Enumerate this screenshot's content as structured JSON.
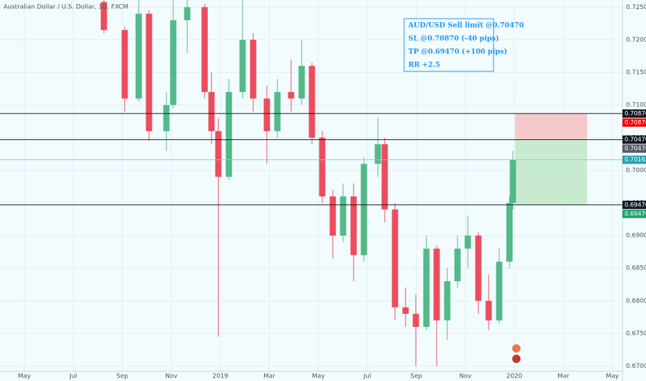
{
  "chart_data": {
    "type": "candlestick",
    "title": "Australian Dollar / U.S. Dollar, 1D, FXCM",
    "up_color": "#53b987",
    "down_color": "#eb4d5c",
    "x": [
      7.25,
      8.1,
      8.67,
      9.09,
      9.8,
      10.08,
      10.65,
      11.36,
      11.64,
      11.92,
      12.35,
      12.91,
      13.34,
      13.9,
      14.33,
      14.89,
      15.32,
      15.74,
      16.16,
      16.59,
      17.01,
      17.44,
      17.86,
      18.43,
      18.71,
      19.13,
      19.56,
      19.98,
      20.41,
      20.83,
      21.26,
      21.68,
      22.1,
      22.53,
      22.95,
      23.38,
      23.8,
      23.94
    ],
    "open": [
      0.7258,
      0.7215,
      0.711,
      0.724,
      0.706,
      0.71,
      0.723,
      0.725,
      0.712,
      0.706,
      0.699,
      0.712,
      0.72,
      0.711,
      0.706,
      0.712,
      0.711,
      0.716,
      0.705,
      0.696,
      0.69,
      0.696,
      0.687,
      0.701,
      0.704,
      0.694,
      0.679,
      0.678,
      0.676,
      0.688,
      0.677,
      0.683,
      0.688,
      0.69,
      0.68,
      0.677,
      0.686,
      0.695
    ],
    "high": [
      0.7262,
      0.722,
      0.7262,
      0.7245,
      0.712,
      0.7262,
      0.7262,
      0.7255,
      0.715,
      0.708,
      0.714,
      0.7262,
      0.721,
      0.713,
      0.714,
      0.717,
      0.72,
      0.7165,
      0.706,
      0.697,
      0.698,
      0.698,
      0.702,
      0.708,
      0.705,
      0.695,
      0.682,
      0.681,
      0.69,
      0.6885,
      0.685,
      0.69,
      0.693,
      0.6905,
      0.684,
      0.688,
      0.696,
      0.703
    ],
    "low": [
      0.721,
      0.709,
      0.7105,
      0.7045,
      0.703,
      0.7095,
      0.718,
      0.711,
      0.704,
      0.6745,
      0.6985,
      0.711,
      0.709,
      0.701,
      0.705,
      0.709,
      0.71,
      0.704,
      0.695,
      0.6865,
      0.689,
      0.683,
      0.686,
      0.699,
      0.692,
      0.677,
      0.676,
      0.67,
      0.6755,
      0.67,
      0.674,
      0.682,
      0.685,
      0.678,
      0.6755,
      0.6765,
      0.685,
      0.694
    ],
    "close": [
      0.7215,
      0.711,
      0.724,
      0.706,
      0.71,
      0.723,
      0.725,
      0.712,
      0.706,
      0.699,
      0.712,
      0.72,
      0.711,
      0.706,
      0.712,
      0.711,
      0.716,
      0.705,
      0.696,
      0.69,
      0.696,
      0.687,
      0.701,
      0.704,
      0.694,
      0.679,
      0.678,
      0.676,
      0.688,
      0.677,
      0.683,
      0.688,
      0.69,
      0.68,
      0.677,
      0.686,
      0.695,
      0.70162
    ],
    "xlim": [
      3.01,
      28.41
    ],
    "xticks": [
      {
        "value": 4,
        "label": "May"
      },
      {
        "value": 6,
        "label": "Jul"
      },
      {
        "value": 8,
        "label": "Sep"
      },
      {
        "value": 10,
        "label": "Nov"
      },
      {
        "value": 12,
        "label": "2019"
      },
      {
        "value": 14,
        "label": "Mar"
      },
      {
        "value": 16,
        "label": "May"
      },
      {
        "value": 18,
        "label": "Jul"
      },
      {
        "value": 20,
        "label": "Sep"
      },
      {
        "value": 22,
        "label": "Nov"
      },
      {
        "value": 24,
        "label": "2020"
      },
      {
        "value": 26,
        "label": "Mar"
      },
      {
        "value": 28,
        "label": "May"
      }
    ],
    "ylim": [
      0.6692,
      0.7261
    ],
    "yticks": [
      {
        "value": 0.67,
        "label": "0.67000"
      },
      {
        "value": 0.675,
        "label": "0.67500"
      },
      {
        "value": 0.68,
        "label": "0.68000"
      },
      {
        "value": 0.685,
        "label": "0.68500"
      },
      {
        "value": 0.69,
        "label": "0.69000"
      },
      {
        "value": 0.695,
        "label": "0.69500"
      },
      {
        "value": 0.7,
        "label": "0.70000"
      },
      {
        "value": 0.705,
        "label": "0.70500"
      },
      {
        "value": 0.71,
        "label": "0.71000"
      },
      {
        "value": 0.715,
        "label": "0.71500"
      },
      {
        "value": 0.72,
        "label": "0.72000"
      },
      {
        "value": 0.725,
        "label": "0.72500"
      }
    ],
    "grid": true,
    "hlines": [
      0.7087,
      0.7047,
      0.6947
    ],
    "last_price": 0.70162,
    "position": {
      "stop": 0.7087,
      "entry": 0.7047,
      "target": 0.6947,
      "x_start": 24.03,
      "x_end": 26.97
    },
    "price_labels": [
      {
        "value": 0.7087,
        "label": "0.70870",
        "color": "#131722"
      },
      {
        "value": 0.7087,
        "label": "0.70870",
        "color": "#f00000"
      },
      {
        "value": 0.7047,
        "label": "0.70470",
        "color": "#131722"
      },
      {
        "value": 0.7047,
        "label": "0.70470",
        "color": "#555b66"
      },
      {
        "value": 0.70162,
        "label": "0.70162",
        "color": "#26a0b3"
      },
      {
        "value": 0.6947,
        "label": "0.69470",
        "color": "#131722"
      },
      {
        "value": 0.6947,
        "label": "0.69470",
        "color": "#22a06b"
      }
    ],
    "annotation": [
      "AUD/USD Sell limit @0.70470",
      "SL @0.70870 (-40 pips)",
      "TP @0.69470 (+100 pips)",
      "RR +2.5"
    ]
  }
}
